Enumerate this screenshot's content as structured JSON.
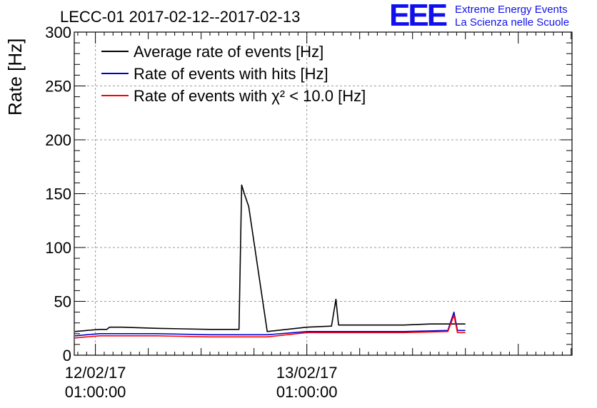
{
  "chart_data": {
    "type": "line",
    "title": "LECC-01 2017-02-12--2017-02-13",
    "ylabel": "Rate [Hz]",
    "xlabel": "",
    "ylim": [
      0,
      300
    ],
    "yticks": [
      0,
      50,
      100,
      150,
      200,
      250,
      300
    ],
    "x_unit": "hours since 12/02/17 00:00:00",
    "xlim": [
      -1.4,
      55.1
    ],
    "xticks": [
      {
        "x": 1,
        "line1": "12/02/17",
        "line2": "01:00:00"
      },
      {
        "x": 25,
        "line1": "13/02/17",
        "line2": "01:00:00"
      }
    ],
    "grid": true,
    "legend_position": "top-left",
    "series": [
      {
        "name": "Average rate of events [Hz]",
        "color": "#000000",
        "x": [
          -4.7,
          -2.5,
          0,
          1.5,
          2.3,
          2.6,
          4,
          8,
          14,
          17.3,
          17.6,
          17.9,
          18.4,
          20.5,
          25,
          27.8,
          28.3,
          28.6,
          32.5,
          36,
          39,
          43
        ],
        "y": [
          22,
          22,
          23,
          24,
          24,
          26,
          26,
          25,
          24,
          24,
          158,
          150,
          138,
          22,
          26,
          27,
          52,
          28,
          28,
          28,
          29,
          29
        ]
      },
      {
        "name": "Rate of events with hits [Hz]",
        "color": "#0000cc",
        "x": [
          -4.7,
          -2.5,
          0,
          1.5,
          4,
          8,
          14,
          20.5,
          25,
          30,
          36,
          41,
          41.7,
          42.1,
          43
        ],
        "y": [
          18,
          18,
          19,
          20,
          20,
          20,
          19,
          19,
          22,
          22,
          22,
          23,
          40,
          23,
          23
        ]
      },
      {
        "name": "Rate of events with χ² < 10.0 [Hz]",
        "color": "#ff0000",
        "x": [
          -4.7,
          -2.5,
          0,
          1.5,
          4,
          8,
          14,
          20.5,
          25,
          30,
          36,
          41,
          41.7,
          42.1,
          43
        ],
        "y": [
          16,
          16,
          17,
          18,
          18,
          18,
          17,
          17,
          21,
          21,
          21,
          22,
          37,
          21,
          21
        ]
      }
    ]
  },
  "logo": {
    "mark": "EEE",
    "line1": "Extreme Energy Events",
    "line2": "La Scienza nelle Scuole"
  }
}
